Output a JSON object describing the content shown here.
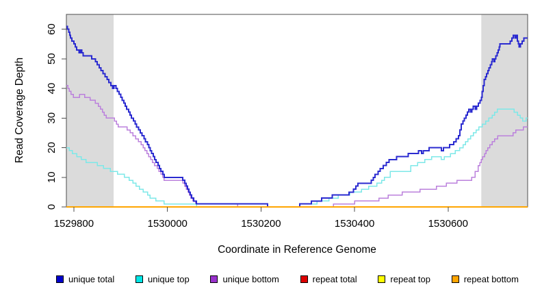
{
  "chart_data": {
    "type": "line",
    "subtype": "step-after",
    "title": "",
    "xlabel": "Coordinate in Reference Genome",
    "ylabel": "Read Coverage Depth",
    "xlim": [
      1529784,
      1530770
    ],
    "ylim": [
      0,
      65
    ],
    "x_ticks": [
      1529800,
      1530000,
      1530200,
      1530400,
      1530600
    ],
    "y_ticks": [
      0,
      10,
      20,
      30,
      40,
      50,
      60
    ],
    "grid": false,
    "legend_position": "bottom",
    "background_color": "#FFFFFF",
    "box_color": "#4D4D4D",
    "shade_color": "#DBDBDB",
    "shaded_regions": [
      {
        "x0": 1529784,
        "x1": 1529885
      },
      {
        "x0": 1530671,
        "x1": 1530770
      }
    ],
    "series": [
      {
        "name": "unique total",
        "color": "#2A2AD0",
        "legend_color": "#0000CC",
        "lw": 2,
        "points": [
          [
            1529784,
            61
          ],
          [
            1529786,
            60
          ],
          [
            1529789,
            59
          ],
          [
            1529791,
            58
          ],
          [
            1529793,
            57
          ],
          [
            1529796,
            56
          ],
          [
            1529800,
            55
          ],
          [
            1529803,
            54
          ],
          [
            1529806,
            53
          ],
          [
            1529811,
            52
          ],
          [
            1529814,
            53
          ],
          [
            1529817,
            52
          ],
          [
            1529820,
            51
          ],
          [
            1529838,
            50
          ],
          [
            1529846,
            49
          ],
          [
            1529850,
            48
          ],
          [
            1529854,
            47
          ],
          [
            1529858,
            46
          ],
          [
            1529862,
            45
          ],
          [
            1529867,
            44
          ],
          [
            1529871,
            43
          ],
          [
            1529875,
            42
          ],
          [
            1529879,
            41
          ],
          [
            1529883,
            40
          ],
          [
            1529886,
            41
          ],
          [
            1529890,
            40
          ],
          [
            1529893,
            39
          ],
          [
            1529897,
            38
          ],
          [
            1529900,
            37
          ],
          [
            1529903,
            36
          ],
          [
            1529907,
            35
          ],
          [
            1529910,
            34
          ],
          [
            1529913,
            33
          ],
          [
            1529917,
            32
          ],
          [
            1529920,
            31
          ],
          [
            1529923,
            30
          ],
          [
            1529927,
            29
          ],
          [
            1529931,
            28
          ],
          [
            1529934,
            27
          ],
          [
            1529938,
            26
          ],
          [
            1529942,
            25
          ],
          [
            1529946,
            24
          ],
          [
            1529950,
            23
          ],
          [
            1529953,
            22
          ],
          [
            1529957,
            21
          ],
          [
            1529960,
            20
          ],
          [
            1529963,
            19
          ],
          [
            1529966,
            18
          ],
          [
            1529970,
            17
          ],
          [
            1529973,
            16
          ],
          [
            1529976,
            15
          ],
          [
            1529980,
            14
          ],
          [
            1529983,
            13
          ],
          [
            1529986,
            12
          ],
          [
            1529990,
            11
          ],
          [
            1529993,
            10
          ],
          [
            1530033,
            9
          ],
          [
            1530037,
            8
          ],
          [
            1530040,
            7
          ],
          [
            1530043,
            6
          ],
          [
            1530046,
            5
          ],
          [
            1530049,
            4
          ],
          [
            1530052,
            3
          ],
          [
            1530056,
            2
          ],
          [
            1530062,
            1
          ],
          [
            1530214,
            0
          ],
          [
            1530283,
            1
          ],
          [
            1530308,
            2
          ],
          [
            1530330,
            3
          ],
          [
            1530352,
            4
          ],
          [
            1530388,
            5
          ],
          [
            1530398,
            6
          ],
          [
            1530403,
            7
          ],
          [
            1530407,
            8
          ],
          [
            1530436,
            9
          ],
          [
            1530440,
            10
          ],
          [
            1530444,
            11
          ],
          [
            1530450,
            12
          ],
          [
            1530455,
            13
          ],
          [
            1530461,
            14
          ],
          [
            1530468,
            15
          ],
          [
            1530474,
            16
          ],
          [
            1530490,
            17
          ],
          [
            1530515,
            18
          ],
          [
            1530537,
            19
          ],
          [
            1530543,
            18
          ],
          [
            1530547,
            19
          ],
          [
            1530559,
            20
          ],
          [
            1530586,
            19
          ],
          [
            1530590,
            20
          ],
          [
            1530603,
            21
          ],
          [
            1530612,
            22
          ],
          [
            1530617,
            23
          ],
          [
            1530622,
            24
          ],
          [
            1530625,
            26
          ],
          [
            1530628,
            28
          ],
          [
            1530632,
            29
          ],
          [
            1530635,
            30
          ],
          [
            1530638,
            31
          ],
          [
            1530641,
            32
          ],
          [
            1530644,
            33
          ],
          [
            1530648,
            32
          ],
          [
            1530651,
            33
          ],
          [
            1530654,
            34
          ],
          [
            1530658,
            33
          ],
          [
            1530661,
            34
          ],
          [
            1530665,
            35
          ],
          [
            1530668,
            36
          ],
          [
            1530671,
            37
          ],
          [
            1530673,
            39
          ],
          [
            1530675,
            41
          ],
          [
            1530677,
            43
          ],
          [
            1530680,
            44
          ],
          [
            1530682,
            45
          ],
          [
            1530685,
            46
          ],
          [
            1530687,
            47
          ],
          [
            1530690,
            48
          ],
          [
            1530693,
            49
          ],
          [
            1530695,
            50
          ],
          [
            1530698,
            49
          ],
          [
            1530700,
            50
          ],
          [
            1530702,
            51
          ],
          [
            1530705,
            52
          ],
          [
            1530707,
            53
          ],
          [
            1530709,
            54
          ],
          [
            1530711,
            55
          ],
          [
            1530733,
            56
          ],
          [
            1530736,
            57
          ],
          [
            1530739,
            58
          ],
          [
            1530743,
            57
          ],
          [
            1530745,
            58
          ],
          [
            1530748,
            56
          ],
          [
            1530750,
            55
          ],
          [
            1530752,
            54
          ],
          [
            1530755,
            55
          ],
          [
            1530758,
            56
          ],
          [
            1530762,
            57
          ],
          [
            1530770,
            57
          ]
        ]
      },
      {
        "name": "unique top",
        "color": "#7DE8E8",
        "legend_color": "#00E6E6",
        "lw": 1.5,
        "points": [
          [
            1529784,
            20
          ],
          [
            1529790,
            19
          ],
          [
            1529797,
            18
          ],
          [
            1529806,
            17
          ],
          [
            1529816,
            16
          ],
          [
            1529826,
            15
          ],
          [
            1529850,
            14
          ],
          [
            1529863,
            13
          ],
          [
            1529878,
            12
          ],
          [
            1529893,
            11
          ],
          [
            1529908,
            10
          ],
          [
            1529918,
            9
          ],
          [
            1529926,
            8
          ],
          [
            1529933,
            7
          ],
          [
            1529940,
            6
          ],
          [
            1529948,
            5
          ],
          [
            1529958,
            4
          ],
          [
            1529963,
            3
          ],
          [
            1529975,
            2
          ],
          [
            1529993,
            1
          ],
          [
            1530062,
            0
          ],
          [
            1530283,
            1
          ],
          [
            1530320,
            2
          ],
          [
            1530345,
            3
          ],
          [
            1530365,
            4
          ],
          [
            1530390,
            5
          ],
          [
            1530415,
            6
          ],
          [
            1530430,
            7
          ],
          [
            1530448,
            8
          ],
          [
            1530458,
            9
          ],
          [
            1530464,
            10
          ],
          [
            1530476,
            12
          ],
          [
            1530520,
            14
          ],
          [
            1530535,
            15
          ],
          [
            1530550,
            16
          ],
          [
            1530565,
            17
          ],
          [
            1530585,
            16
          ],
          [
            1530592,
            17
          ],
          [
            1530605,
            18
          ],
          [
            1530615,
            19
          ],
          [
            1530625,
            20
          ],
          [
            1530632,
            21
          ],
          [
            1530637,
            22
          ],
          [
            1530642,
            23
          ],
          [
            1530648,
            24
          ],
          [
            1530654,
            25
          ],
          [
            1530660,
            26
          ],
          [
            1530666,
            27
          ],
          [
            1530673,
            28
          ],
          [
            1530680,
            29
          ],
          [
            1530687,
            30
          ],
          [
            1530694,
            31
          ],
          [
            1530699,
            32
          ],
          [
            1530705,
            33
          ],
          [
            1530741,
            32
          ],
          [
            1530748,
            31
          ],
          [
            1530754,
            30
          ],
          [
            1530759,
            29
          ],
          [
            1530767,
            30
          ],
          [
            1530770,
            30
          ]
        ]
      },
      {
        "name": "unique bottom",
        "color": "#BB80DC",
        "legend_color": "#9932CC",
        "lw": 1.5,
        "points": [
          [
            1529784,
            41
          ],
          [
            1529787,
            40
          ],
          [
            1529790,
            39
          ],
          [
            1529794,
            38
          ],
          [
            1529799,
            37
          ],
          [
            1529812,
            38
          ],
          [
            1529823,
            37
          ],
          [
            1529835,
            36
          ],
          [
            1529846,
            35
          ],
          [
            1529852,
            34
          ],
          [
            1529857,
            33
          ],
          [
            1529861,
            32
          ],
          [
            1529865,
            31
          ],
          [
            1529869,
            30
          ],
          [
            1529887,
            29
          ],
          [
            1529891,
            28
          ],
          [
            1529895,
            27
          ],
          [
            1529914,
            26
          ],
          [
            1529920,
            25
          ],
          [
            1529926,
            24
          ],
          [
            1529932,
            23
          ],
          [
            1529938,
            22
          ],
          [
            1529944,
            21
          ],
          [
            1529948,
            20
          ],
          [
            1529952,
            19
          ],
          [
            1529956,
            18
          ],
          [
            1529960,
            17
          ],
          [
            1529964,
            16
          ],
          [
            1529968,
            15
          ],
          [
            1529972,
            14
          ],
          [
            1529978,
            13
          ],
          [
            1529982,
            12
          ],
          [
            1529986,
            11
          ],
          [
            1529990,
            10
          ],
          [
            1529993,
            9
          ],
          [
            1530033,
            8
          ],
          [
            1530037,
            7
          ],
          [
            1530040,
            6
          ],
          [
            1530044,
            5
          ],
          [
            1530047,
            4
          ],
          [
            1530050,
            3
          ],
          [
            1530054,
            2
          ],
          [
            1530060,
            1
          ],
          [
            1530150,
            0
          ],
          [
            1530355,
            1
          ],
          [
            1530400,
            2
          ],
          [
            1530452,
            3
          ],
          [
            1530472,
            4
          ],
          [
            1530502,
            5
          ],
          [
            1530540,
            6
          ],
          [
            1530575,
            7
          ],
          [
            1530596,
            8
          ],
          [
            1530619,
            9
          ],
          [
            1530650,
            10
          ],
          [
            1530658,
            12
          ],
          [
            1530664,
            14
          ],
          [
            1530668,
            15
          ],
          [
            1530671,
            16
          ],
          [
            1530674,
            17
          ],
          [
            1530678,
            18
          ],
          [
            1530681,
            19
          ],
          [
            1530685,
            20
          ],
          [
            1530689,
            21
          ],
          [
            1530694,
            22
          ],
          [
            1530699,
            23
          ],
          [
            1530706,
            24
          ],
          [
            1530739,
            25
          ],
          [
            1530745,
            26
          ],
          [
            1530761,
            27
          ],
          [
            1530770,
            27
          ]
        ]
      },
      {
        "name": "repeat total",
        "color": "#CC0000",
        "legend_color": "#DD0000",
        "lw": 1.2,
        "points": [
          [
            1529784,
            0
          ],
          [
            1530770,
            0
          ]
        ]
      },
      {
        "name": "repeat top",
        "color": "#FFFF00",
        "legend_color": "#FFFF00",
        "lw": 1.2,
        "points": [
          [
            1529784,
            0
          ],
          [
            1530770,
            0
          ]
        ]
      },
      {
        "name": "repeat bottom",
        "color": "#FFA500",
        "legend_color": "#FFA500",
        "lw": 1.8,
        "points": [
          [
            1529784,
            0
          ],
          [
            1530770,
            0
          ]
        ]
      }
    ]
  }
}
